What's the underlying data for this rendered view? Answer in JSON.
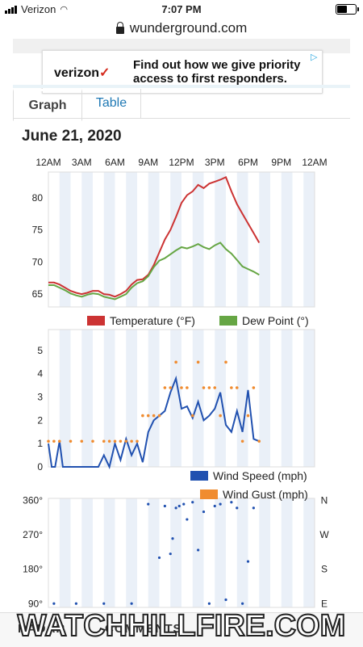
{
  "status_bar": {
    "carrier": "Verizon",
    "time": "7:07 PM"
  },
  "url_bar": {
    "domain": "wunderground.com"
  },
  "ad": {
    "brand": "verizon",
    "check": "✓",
    "headline_1": "Find out how we give priority",
    "headline_2": "access to first responders."
  },
  "tabs": [
    {
      "label": "Graph",
      "active": true
    },
    {
      "label": "Table",
      "active": false
    }
  ],
  "date_heading": "June 21, 2020",
  "hour_labels": [
    "12AM",
    "3AM",
    "6AM",
    "9AM",
    "12PM",
    "3PM",
    "6PM",
    "9PM",
    "12AM"
  ],
  "chart_data": [
    {
      "type": "line",
      "ylim": [
        63,
        84
      ],
      "yticks": [
        65,
        70,
        75,
        80
      ],
      "x_unit": "hours",
      "series": [
        {
          "name": "Temperature (°F)",
          "color": "#cc3333",
          "x": [
            0,
            0.5,
            1,
            1.5,
            2,
            2.5,
            3,
            3.5,
            4,
            4.5,
            5,
            5.5,
            6,
            6.5,
            7,
            7.5,
            8,
            8.5,
            9,
            9.5,
            10,
            10.5,
            11,
            11.5,
            12,
            12.5,
            13,
            13.5,
            14,
            14.5,
            15,
            15.5,
            16,
            16.5,
            17,
            17.5,
            18,
            18.5,
            19
          ],
          "y": [
            66.8,
            66.8,
            66.5,
            66,
            65.5,
            65.2,
            65,
            65.2,
            65.5,
            65.5,
            65,
            64.9,
            64.6,
            65,
            65.5,
            66.5,
            67.2,
            67.3,
            68,
            69.5,
            71.5,
            73.5,
            75,
            77,
            79.2,
            80.4,
            81,
            82,
            81.5,
            82.2,
            82.5,
            82.8,
            83.2,
            81,
            79,
            77.5,
            76,
            74.5,
            73
          ]
        },
        {
          "name": "Dew Point (°)",
          "color": "#66a644",
          "x": [
            0,
            0.5,
            1,
            1.5,
            2,
            2.5,
            3,
            3.5,
            4,
            4.5,
            5,
            5.5,
            6,
            6.5,
            7,
            7.5,
            8,
            8.5,
            9,
            9.5,
            10,
            10.5,
            11,
            11.5,
            12,
            12.5,
            13,
            13.5,
            14,
            14.5,
            15,
            15.5,
            16,
            16.5,
            17,
            17.5,
            18,
            18.5,
            19
          ],
          "y": [
            66.4,
            66.4,
            66,
            65.6,
            65.1,
            64.8,
            64.6,
            64.9,
            65.1,
            65,
            64.6,
            64.4,
            64.2,
            64.6,
            65,
            66,
            66.7,
            67,
            67.8,
            69.2,
            70.2,
            70.6,
            71.2,
            71.8,
            72.3,
            72.1,
            72.4,
            72.8,
            72.3,
            72,
            72.6,
            73,
            72,
            71.3,
            70.3,
            69.3,
            68.9,
            68.5,
            68
          ]
        }
      ]
    },
    {
      "type": "line",
      "ylim": [
        0,
        5.9
      ],
      "yticks": [
        0,
        1,
        2,
        3,
        4,
        5
      ],
      "series": [
        {
          "name": "Wind Speed (mph)",
          "color": "#2151b0",
          "x": [
            0,
            0.3,
            0.6,
            1,
            1.3,
            1.6,
            2,
            2.5,
            3,
            3.5,
            4,
            4.5,
            5,
            5.5,
            6,
            6.5,
            7,
            7.5,
            8,
            8.5,
            9,
            9.5,
            10,
            10.5,
            11,
            11.5,
            12,
            12.5,
            13,
            13.5,
            14,
            14.5,
            15,
            15.5,
            16,
            16.5,
            17,
            17.5,
            18,
            18.5,
            19
          ],
          "y": [
            1,
            0,
            0,
            1.1,
            0,
            0,
            0,
            0,
            0,
            0,
            0,
            0,
            0.5,
            0,
            1,
            0.3,
            1.2,
            0.5,
            1,
            0.2,
            1.5,
            2,
            2.2,
            2.4,
            3.2,
            3.8,
            2.5,
            2.6,
            2.1,
            2.8,
            2,
            2.2,
            2.5,
            3.2,
            1.8,
            1.5,
            2.4,
            1.5,
            3.3,
            1.2,
            1.1
          ]
        },
        {
          "name": "Wind Gust (mph)",
          "color": "#f08c30",
          "x": [
            0,
            0.5,
            1,
            2,
            3,
            4,
            5,
            5.5,
            6,
            6.5,
            7,
            7.5,
            8,
            8.5,
            9,
            9.5,
            10,
            10.5,
            11,
            11.5,
            12,
            12.5,
            13,
            13.5,
            14,
            14.5,
            15,
            15.5,
            16,
            16.5,
            17,
            17.5,
            18,
            18.5,
            19
          ],
          "y": [
            1.1,
            1.1,
            1.1,
            1.1,
            1.1,
            1.1,
            1.1,
            1.1,
            1.1,
            1.1,
            1.1,
            1.1,
            1.1,
            2.2,
            2.2,
            2.2,
            2.2,
            3.4,
            3.4,
            4.5,
            3.4,
            3.4,
            2.2,
            4.5,
            3.4,
            3.4,
            3.4,
            2.2,
            4.5,
            3.4,
            3.4,
            1.1,
            2.2,
            3.4,
            1.1
          ]
        }
      ]
    },
    {
      "type": "scatter",
      "ylim": [
        80,
        365
      ],
      "yticks": [
        90,
        180,
        270,
        360
      ],
      "ytick_labels": [
        "90°",
        "180°",
        "270°",
        "360°"
      ],
      "right_labels": [
        "E",
        "S",
        "W",
        "N"
      ],
      "series": [
        {
          "name": "Wind Direction",
          "color": "#2151b0",
          "x": [
            0.5,
            2.5,
            5,
            7.5,
            9,
            10,
            10.5,
            11,
            11.2,
            11.5,
            11.8,
            12.2,
            12.5,
            13,
            13.5,
            14,
            14.5,
            15,
            15.5,
            16,
            16.5,
            17,
            17.5,
            18,
            18.5
          ],
          "y": [
            90,
            90,
            90,
            90,
            350,
            210,
            345,
            220,
            260,
            340,
            345,
            350,
            310,
            355,
            230,
            330,
            90,
            345,
            350,
            100,
            355,
            340,
            90,
            200,
            340
          ]
        }
      ]
    }
  ],
  "legends": {
    "temp_dew": [
      {
        "label": "Temperature (°F)",
        "color": "#cc3333"
      },
      {
        "label": "Dew Point (°)",
        "color": "#66a644"
      }
    ],
    "wind": [
      {
        "label": "Wind Speed (mph)",
        "color": "#2151b0"
      },
      {
        "label": "Wind Gust (mph)",
        "color": "#f08c30"
      }
    ]
  },
  "bottom_nav": {
    "item_1": "RADAR",
    "item_2": "COMMENTS"
  },
  "watermark": "WATCHHILLFIRE.COM"
}
